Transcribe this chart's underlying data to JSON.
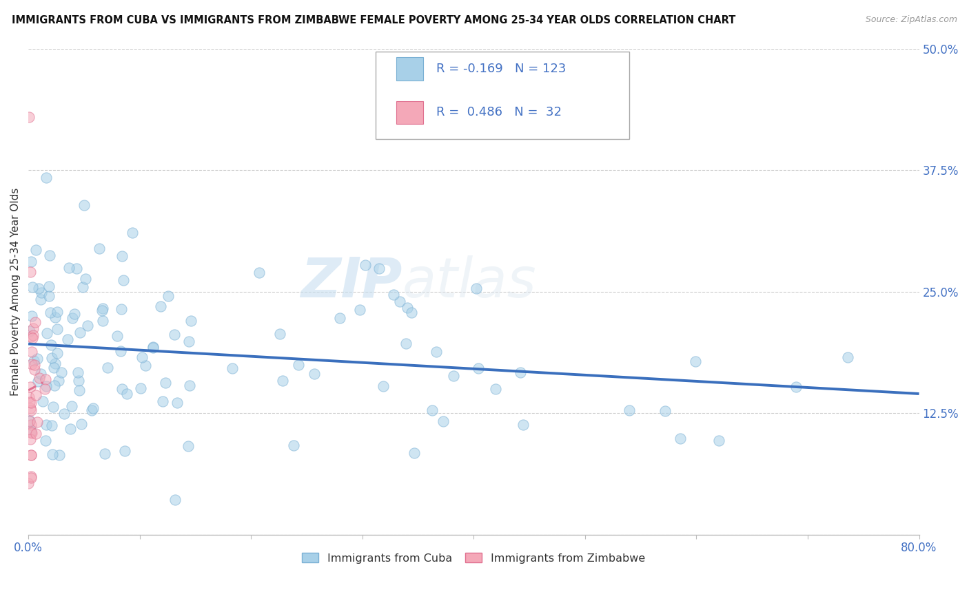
{
  "title": "IMMIGRANTS FROM CUBA VS IMMIGRANTS FROM ZIMBABWE FEMALE POVERTY AMONG 25-34 YEAR OLDS CORRELATION CHART",
  "source": "Source: ZipAtlas.com",
  "ylabel": "Female Poverty Among 25-34 Year Olds",
  "xlim": [
    0.0,
    0.8
  ],
  "ylim": [
    0.0,
    0.5
  ],
  "cuba_color": "#a8d0e8",
  "cuba_edge_color": "#7ab0d4",
  "zimbabwe_color": "#f4a8b8",
  "zimbabwe_edge_color": "#e07090",
  "trend_cuba_color": "#3a6fbd",
  "trend_zimbabwe_color": "#e07090",
  "R_cuba": -0.169,
  "N_cuba": 123,
  "R_zimbabwe": 0.486,
  "N_zimbabwe": 32,
  "legend_label_cuba": "Immigrants from Cuba",
  "legend_label_zimbabwe": "Immigrants from Zimbabwe",
  "watermark_zip": "ZIP",
  "watermark_atlas": "atlas",
  "dot_size": 120,
  "dot_alpha": 0.55,
  "grid_color": "#cccccc",
  "bg_color": "#ffffff",
  "trend_cuba_y0": 0.205,
  "trend_cuba_y1": 0.128,
  "trend_zim_x0": 0.0,
  "trend_zim_y0": 0.06,
  "trend_zim_x1": 0.012,
  "trend_zim_y1": 0.26
}
